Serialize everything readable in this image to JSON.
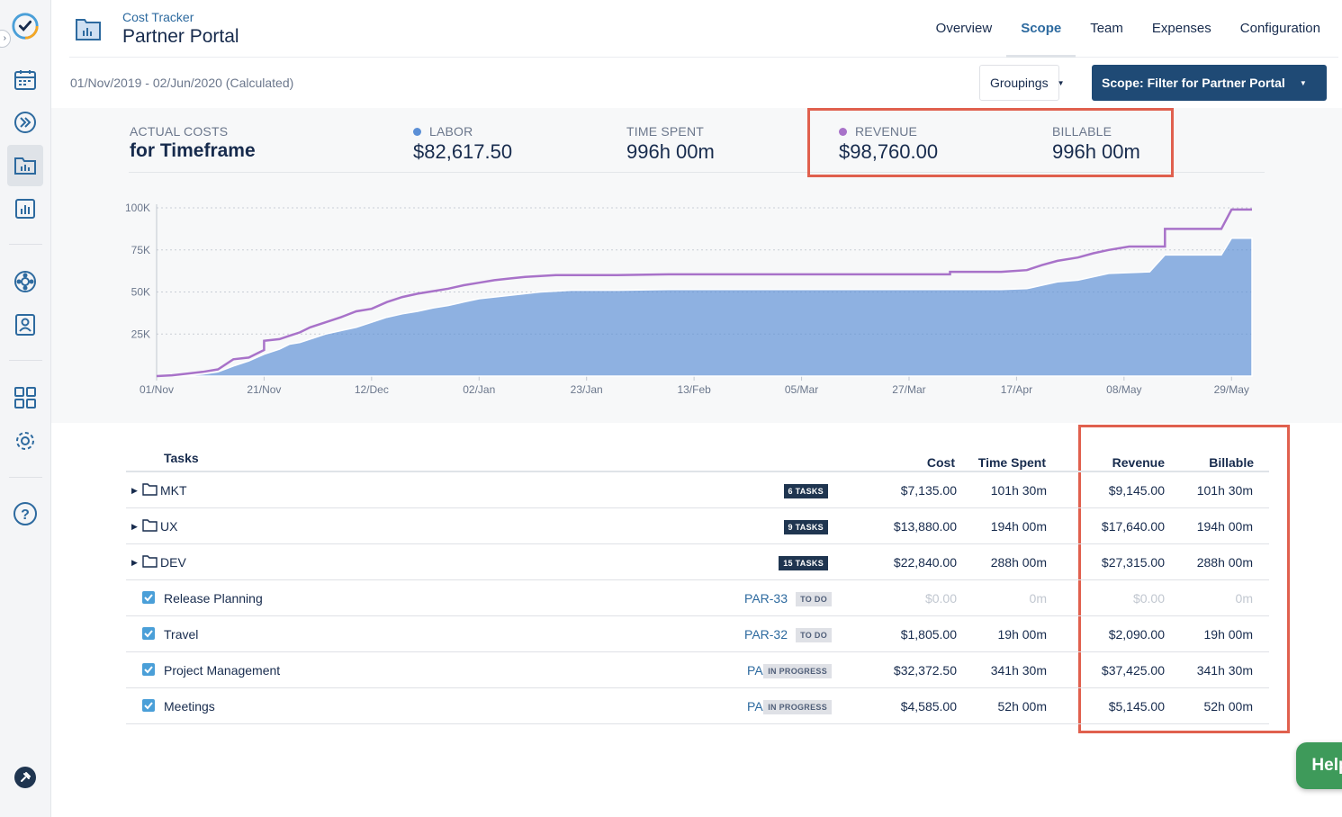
{
  "header": {
    "app_subtitle": "Cost Tracker",
    "title": "Partner Portal",
    "tabs": [
      {
        "label": "Overview"
      },
      {
        "label": "Scope"
      },
      {
        "label": "Team"
      },
      {
        "label": "Expenses"
      },
      {
        "label": "Configuration"
      }
    ],
    "active_tab": "Scope"
  },
  "subbar": {
    "date_range": "01/Nov/2019 - 02/Jun/2020 (Calculated)",
    "groupings_label": "Groupings",
    "scope_label": "Scope: Filter for Partner Portal"
  },
  "stats": {
    "actual_costs_label": "ACTUAL COSTS",
    "timeframe_label": "for Timeframe",
    "labor_label": "LABOR",
    "labor_value": "$82,617.50",
    "time_spent_label": "TIME SPENT",
    "time_spent_value": "996h 00m",
    "revenue_label": "REVENUE",
    "revenue_value": "$98,760.00",
    "billable_label": "BILLABLE",
    "billable_value": "996h 00m"
  },
  "colors": {
    "labor": "#5b8fd6",
    "revenue": "#a872c9",
    "highlight": "#e0604e",
    "primary": "#1f4a75",
    "help": "#3e9a5a"
  },
  "chart_data": {
    "type": "area",
    "x_ticks": [
      "01/Nov",
      "21/Nov",
      "12/Dec",
      "02/Jan",
      "23/Jan",
      "13/Feb",
      "05/Mar",
      "27/Mar",
      "17/Apr",
      "08/May",
      "29/May"
    ],
    "y_ticks": [
      "100K",
      "75K",
      "50K",
      "25K"
    ],
    "ylim": [
      0,
      100000
    ],
    "xlim_days": [
      0,
      214
    ],
    "series": [
      {
        "name": "Labor",
        "color": "#5b8fd6",
        "kind": "area",
        "points": [
          [
            0,
            0
          ],
          [
            3,
            0
          ],
          [
            6,
            500
          ],
          [
            9,
            1200
          ],
          [
            12,
            2500
          ],
          [
            15,
            6000
          ],
          [
            18,
            9000
          ],
          [
            21,
            13000
          ],
          [
            24,
            16000
          ],
          [
            26,
            19000
          ],
          [
            28,
            20000
          ],
          [
            30,
            22000
          ],
          [
            33,
            25000
          ],
          [
            36,
            27000
          ],
          [
            39,
            29000
          ],
          [
            42,
            32000
          ],
          [
            45,
            35000
          ],
          [
            48,
            37000
          ],
          [
            51,
            38500
          ],
          [
            54,
            40500
          ],
          [
            57,
            42000
          ],
          [
            60,
            44000
          ],
          [
            63,
            46000
          ],
          [
            66,
            47000
          ],
          [
            69,
            48000
          ],
          [
            72,
            49000
          ],
          [
            75,
            50000
          ],
          [
            78,
            50500
          ],
          [
            81,
            51000
          ],
          [
            84,
            51000
          ],
          [
            90,
            51000
          ],
          [
            100,
            51500
          ],
          [
            120,
            51500
          ],
          [
            140,
            51500
          ],
          [
            150,
            51500
          ],
          [
            155,
            51500
          ],
          [
            165,
            51500
          ],
          [
            170,
            52000
          ],
          [
            173,
            54000
          ],
          [
            176,
            56000
          ],
          [
            180,
            57000
          ],
          [
            183,
            59000
          ],
          [
            186,
            61000
          ],
          [
            190,
            61500
          ],
          [
            194,
            62000
          ],
          [
            197,
            72000
          ],
          [
            200,
            72000
          ],
          [
            206,
            72000
          ],
          [
            208,
            72000
          ],
          [
            210,
            82000
          ],
          [
            214,
            82000
          ]
        ]
      },
      {
        "name": "Revenue",
        "color": "#a872c9",
        "kind": "line",
        "points": [
          [
            0,
            0
          ],
          [
            3,
            500
          ],
          [
            6,
            1500
          ],
          [
            9,
            2500
          ],
          [
            12,
            4000
          ],
          [
            15,
            10000
          ],
          [
            18,
            11000
          ],
          [
            21,
            15500
          ],
          [
            21,
            21000
          ],
          [
            24,
            22000
          ],
          [
            26,
            24000
          ],
          [
            28,
            26000
          ],
          [
            30,
            29000
          ],
          [
            33,
            32000
          ],
          [
            36,
            35000
          ],
          [
            39,
            38500
          ],
          [
            42,
            40000
          ],
          [
            45,
            44000
          ],
          [
            48,
            47000
          ],
          [
            51,
            49000
          ],
          [
            54,
            50500
          ],
          [
            57,
            52000
          ],
          [
            60,
            54000
          ],
          [
            63,
            55500
          ],
          [
            66,
            57000
          ],
          [
            69,
            58000
          ],
          [
            72,
            59000
          ],
          [
            75,
            59500
          ],
          [
            78,
            60000
          ],
          [
            81,
            60000
          ],
          [
            84,
            60000
          ],
          [
            90,
            60000
          ],
          [
            100,
            60500
          ],
          [
            120,
            60500
          ],
          [
            140,
            60500
          ],
          [
            150,
            60500
          ],
          [
            155,
            60500
          ],
          [
            155,
            62000
          ],
          [
            165,
            62000
          ],
          [
            170,
            63000
          ],
          [
            173,
            66000
          ],
          [
            176,
            68500
          ],
          [
            180,
            70500
          ],
          [
            183,
            73000
          ],
          [
            186,
            75000
          ],
          [
            190,
            77000
          ],
          [
            194,
            77000
          ],
          [
            197,
            77000
          ],
          [
            197,
            87500
          ],
          [
            200,
            87500
          ],
          [
            206,
            87500
          ],
          [
            208,
            87500
          ],
          [
            210,
            99000
          ],
          [
            214,
            99000
          ]
        ]
      }
    ]
  },
  "table": {
    "headers": {
      "tasks": "Tasks",
      "cost": "Cost",
      "time": "Time Spent",
      "revenue": "Revenue",
      "billable": "Billable"
    },
    "rows": [
      {
        "type": "group",
        "name": "MKT",
        "badge": "6 TASKS",
        "cost": "$7,135.00",
        "time": "101h 30m",
        "revenue": "$9,145.00",
        "billable": "101h 30m"
      },
      {
        "type": "group",
        "name": "UX",
        "badge": "9 TASKS",
        "cost": "$13,880.00",
        "time": "194h 00m",
        "revenue": "$17,640.00",
        "billable": "194h 00m"
      },
      {
        "type": "group",
        "name": "DEV",
        "badge": "15 TASKS",
        "cost": "$22,840.00",
        "time": "288h 00m",
        "revenue": "$27,315.00",
        "billable": "288h 00m"
      },
      {
        "type": "task",
        "name": "Release Planning",
        "key": "PAR-33",
        "status": "TO DO",
        "cost": "$0.00",
        "time": "0m",
        "revenue": "$0.00",
        "billable": "0m",
        "muted": true
      },
      {
        "type": "task",
        "name": "Travel",
        "key": "PAR-32",
        "status": "TO DO",
        "cost": "$1,805.00",
        "time": "19h 00m",
        "revenue": "$2,090.00",
        "billable": "19h 00m"
      },
      {
        "type": "task",
        "name": "Project Management",
        "key": "PAR-31",
        "status": "IN PROGRESS",
        "cost": "$32,372.50",
        "time": "341h 30m",
        "revenue": "$37,425.00",
        "billable": "341h 30m"
      },
      {
        "type": "task",
        "name": "Meetings",
        "key": "PAR-29",
        "status": "IN PROGRESS",
        "cost": "$4,585.00",
        "time": "52h 00m",
        "revenue": "$5,145.00",
        "billable": "52h 00m"
      }
    ]
  },
  "help": {
    "label": "Help"
  },
  "icons": [
    "app-logo-icon",
    "calendar-icon",
    "forward-icon",
    "folder-chart-icon",
    "report-icon",
    "support-icon",
    "user-card-icon",
    "apps-grid-icon",
    "settings-icon",
    "help-circle-icon",
    "pin-icon",
    "external-link-icon"
  ]
}
